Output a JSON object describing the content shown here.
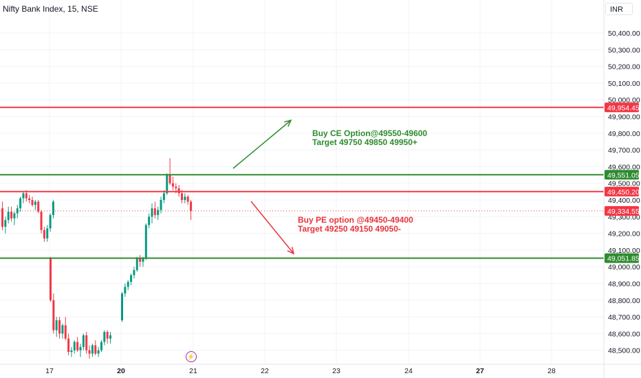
{
  "header": {
    "title": "Nifty Bank Index, 15, NSE",
    "currency": "INR"
  },
  "annotations": {
    "ce_line1": "Buy CE Option@49550-49600",
    "ce_line2": "Target 49750 49850 49950+",
    "pe_line1": "Buy PE option @49450-49400",
    "pe_line2": "Target 49250 49150 49050-"
  },
  "colors": {
    "up": "#089981",
    "down": "#f23645",
    "resistance": "#f23645",
    "support": "#2e8b2e",
    "ce_arrow": "#2e8b2e",
    "pe_arrow": "#e8323a"
  },
  "icons": {
    "flash": "lightning-icon"
  },
  "chart_data": {
    "type": "candlestick",
    "title": "Nifty Bank Index, 15, NSE",
    "currency": "INR",
    "yaxis_ticks": [
      50400,
      50300,
      50200,
      50100,
      50000,
      49900,
      49800,
      49700,
      49600,
      49500,
      49400,
      49300,
      49200,
      49100,
      49000,
      48900,
      48800,
      48700,
      48600,
      48500
    ],
    "xaxis_ticks": [
      "17",
      "20",
      "21",
      "22",
      "23",
      "24",
      "27",
      "28"
    ],
    "xaxis_bold": [
      "20",
      "27"
    ],
    "ylim": [
      48450,
      50530
    ],
    "price_levels": [
      {
        "value": 49954.45,
        "label": "49,954.45",
        "kind": "resistance"
      },
      {
        "value": 49551.05,
        "label": "49,551.05",
        "kind": "support"
      },
      {
        "value": 49450.2,
        "label": "49,450.20",
        "kind": "resistance"
      },
      {
        "value": 49051.85,
        "label": "49,051.85",
        "kind": "support"
      }
    ],
    "last_price": {
      "value": 49334.55,
      "label": "49,334.55"
    },
    "candles": [
      [
        49350,
        49390,
        49220,
        49240
      ],
      [
        49240,
        49300,
        49200,
        49280
      ],
      [
        49280,
        49360,
        49260,
        49330
      ],
      [
        49330,
        49360,
        49270,
        49290
      ],
      [
        49290,
        49330,
        49250,
        49320
      ],
      [
        49320,
        49370,
        49290,
        49350
      ],
      [
        49350,
        49420,
        49330,
        49410
      ],
      [
        49410,
        49450,
        49380,
        49440
      ],
      [
        49440,
        49460,
        49390,
        49410
      ],
      [
        49410,
        49430,
        49380,
        49400
      ],
      [
        49400,
        49420,
        49360,
        49370
      ],
      [
        49370,
        49400,
        49340,
        49390
      ],
      [
        49390,
        49400,
        49320,
        49330
      ],
      [
        49330,
        49340,
        49200,
        49220
      ],
      [
        49220,
        49240,
        49150,
        49170
      ],
      [
        49170,
        49250,
        49150,
        49230
      ],
      [
        49230,
        49320,
        49210,
        49310
      ],
      [
        49310,
        49400,
        49290,
        49390
      ],
      [
        49050,
        49060,
        48790,
        48800
      ],
      [
        48800,
        48840,
        48600,
        48620
      ],
      [
        48620,
        48700,
        48580,
        48680
      ],
      [
        48680,
        48700,
        48570,
        48600
      ],
      [
        48600,
        48660,
        48570,
        48650
      ],
      [
        48650,
        48700,
        48560,
        48570
      ],
      [
        48570,
        48600,
        48470,
        48490
      ],
      [
        48490,
        48520,
        48460,
        48500
      ],
      [
        48500,
        48560,
        48480,
        48550
      ],
      [
        48550,
        48580,
        48490,
        48500
      ],
      [
        48500,
        48540,
        48460,
        48520
      ],
      [
        48520,
        48600,
        48500,
        48590
      ],
      [
        48590,
        48610,
        48480,
        48500
      ],
      [
        48500,
        48530,
        48450,
        48480
      ],
      [
        48480,
        48540,
        48460,
        48530
      ],
      [
        48530,
        48560,
        48470,
        48480
      ],
      [
        48480,
        48520,
        48460,
        48500
      ],
      [
        48500,
        48560,
        48490,
        48550
      ],
      [
        48550,
        48620,
        48530,
        48610
      ],
      [
        48610,
        48620,
        48540,
        48570
      ],
      [
        48570,
        48610,
        48540,
        48590
      ],
      [
        48680,
        48850,
        48670,
        48840
      ],
      [
        48840,
        48900,
        48820,
        48880
      ],
      [
        48880,
        48920,
        48860,
        48910
      ],
      [
        48910,
        48960,
        48890,
        48950
      ],
      [
        48950,
        49000,
        48930,
        48980
      ],
      [
        48980,
        49060,
        48970,
        49050
      ],
      [
        49050,
        49070,
        49000,
        49030
      ],
      [
        49030,
        49060,
        49000,
        49050
      ],
      [
        49050,
        49260,
        49040,
        49250
      ],
      [
        49250,
        49320,
        49230,
        49300
      ],
      [
        49300,
        49380,
        49260,
        49350
      ],
      [
        49350,
        49390,
        49290,
        49310
      ],
      [
        49310,
        49360,
        49280,
        49340
      ],
      [
        49340,
        49420,
        49320,
        49400
      ],
      [
        49400,
        49460,
        49380,
        49440
      ],
      [
        49440,
        49560,
        49430,
        49550
      ],
      [
        49550,
        49650,
        49490,
        49500
      ],
      [
        49500,
        49540,
        49460,
        49480
      ],
      [
        49480,
        49500,
        49440,
        49470
      ],
      [
        49470,
        49490,
        49420,
        49440
      ],
      [
        49440,
        49460,
        49380,
        49400
      ],
      [
        49400,
        49440,
        49380,
        49420
      ],
      [
        49420,
        49430,
        49370,
        49390
      ],
      [
        49390,
        49400,
        49280,
        49335
      ]
    ]
  }
}
